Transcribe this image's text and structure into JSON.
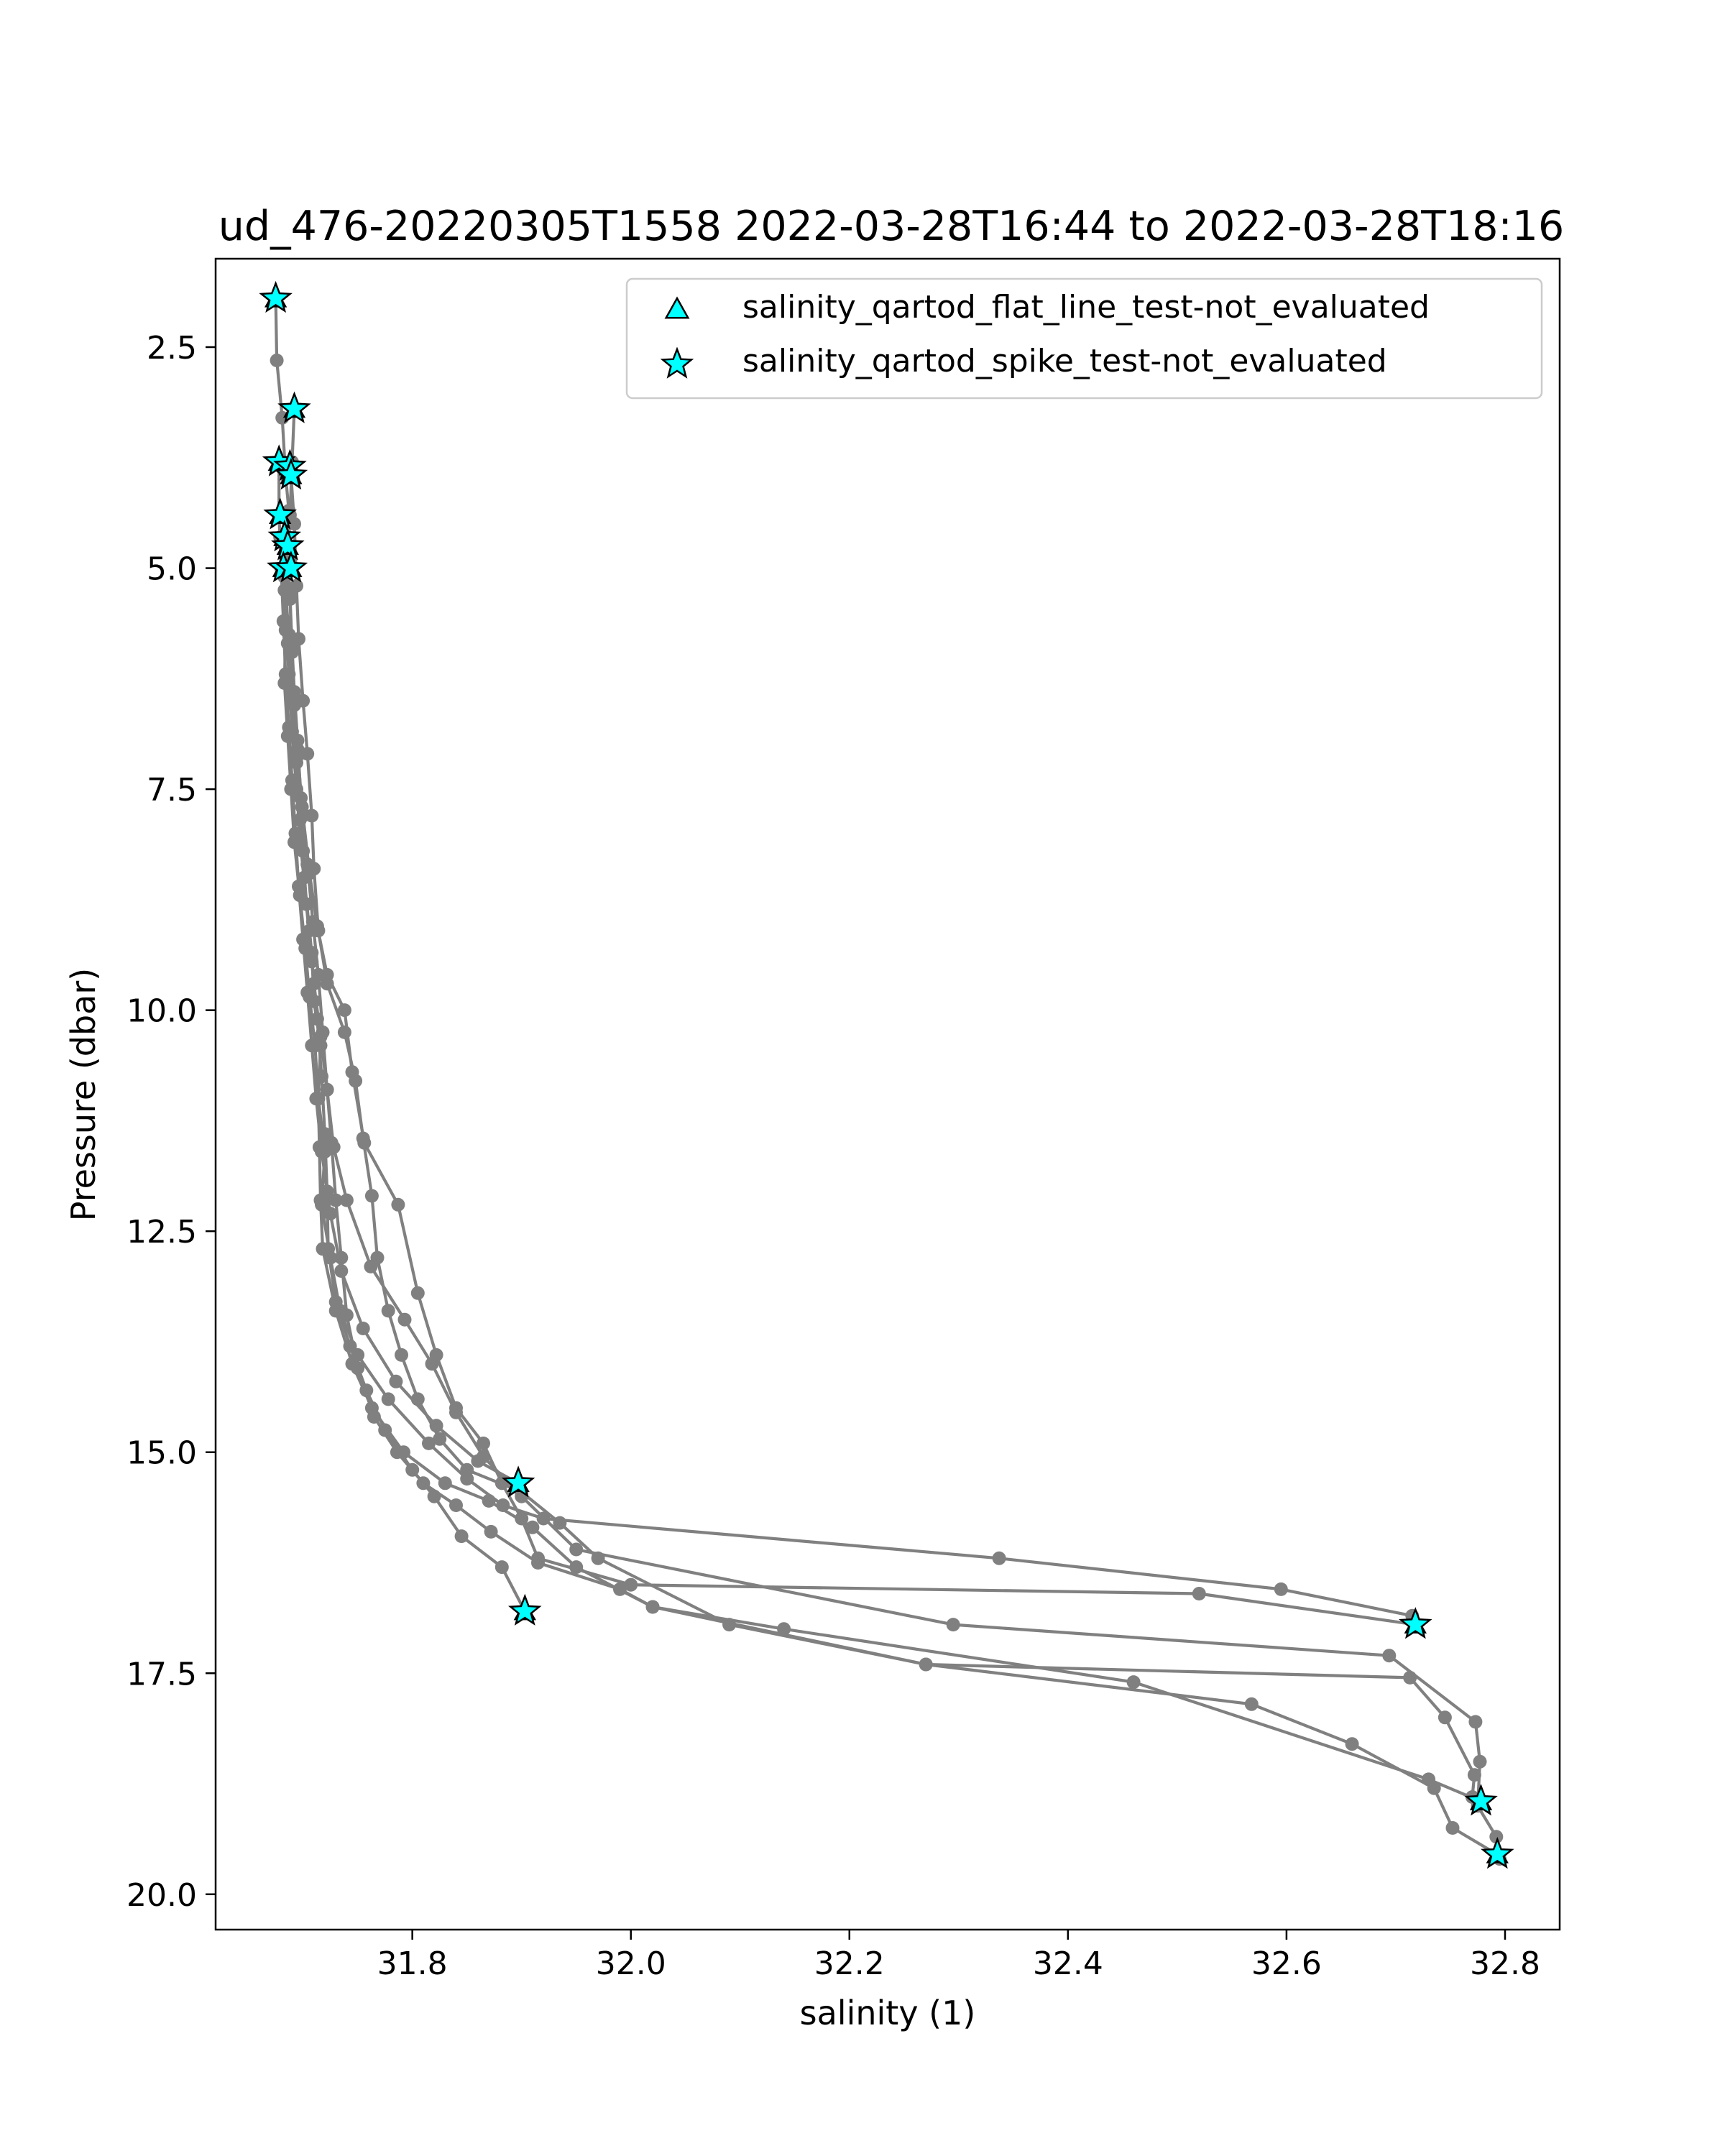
{
  "chart_data": {
    "type": "line",
    "title": "ud_476-20220305T1558 2022-03-28T16:44 to 2022-03-28T18:16",
    "xlabel": "salinity (1)",
    "ylabel": "Pressure (dbar)",
    "xlim": [
      31.62,
      32.85
    ],
    "ylim": [
      20.4,
      1.5
    ],
    "y_inverted": true,
    "grid": false,
    "legend_position": "top-right",
    "xticks": [
      "31.8",
      "32.0",
      "32.2",
      "32.4",
      "32.6",
      "32.8"
    ],
    "yticks": [
      "2.5",
      "5.0",
      "7.5",
      "10.0",
      "12.5",
      "15.0",
      "17.5",
      "20.0"
    ],
    "line_color": "#808080",
    "marker_color": "#00ffff",
    "series": [
      {
        "values": [
          [
            31.675,
            1.95
          ],
          [
            31.676,
            2.65
          ],
          [
            31.681,
            3.3
          ],
          [
            31.684,
            3.95
          ],
          [
            31.687,
            4.35
          ],
          [
            31.685,
            4.85
          ],
          [
            31.688,
            5.3
          ],
          [
            31.69,
            5.9
          ],
          [
            31.692,
            6.4
          ],
          [
            31.695,
            6.95
          ],
          [
            31.698,
            7.6
          ],
          [
            31.7,
            8.2
          ],
          [
            31.703,
            8.8
          ],
          [
            31.708,
            9.35
          ],
          [
            31.71,
            9.9
          ],
          [
            31.716,
            10.4
          ],
          [
            31.714,
            11.0
          ],
          [
            31.72,
            11.6
          ],
          [
            31.717,
            12.2
          ],
          [
            31.725,
            12.8
          ],
          [
            31.734,
            13.4
          ],
          [
            31.75,
            13.9
          ],
          [
            31.778,
            14.4
          ],
          [
            31.815,
            14.9
          ],
          [
            31.85,
            15.3
          ],
          [
            31.883,
            15.6
          ],
          [
            31.92,
            15.75
          ],
          [
            32.337,
            16.2
          ],
          [
            32.595,
            16.55
          ],
          [
            32.715,
            16.85
          ]
        ]
      },
      {
        "values": [
          [
            31.692,
            3.2
          ],
          [
            31.69,
            3.8
          ],
          [
            31.688,
            4.4
          ],
          [
            31.686,
            5.05
          ],
          [
            31.684,
            5.7
          ],
          [
            31.683,
            6.3
          ],
          [
            31.686,
            6.9
          ],
          [
            31.689,
            7.5
          ],
          [
            31.692,
            8.1
          ],
          [
            31.697,
            8.7
          ],
          [
            31.702,
            9.3
          ],
          [
            31.706,
            9.85
          ],
          [
            31.711,
            10.4
          ],
          [
            31.714,
            11.0
          ],
          [
            31.715,
            11.55
          ],
          [
            31.716,
            12.15
          ],
          [
            31.718,
            12.7
          ],
          [
            31.73,
            13.4
          ],
          [
            31.745,
            14.0
          ],
          [
            31.763,
            14.5
          ],
          [
            31.792,
            15.0
          ],
          [
            31.83,
            15.35
          ],
          [
            31.87,
            15.55
          ],
          [
            31.91,
            15.85
          ],
          [
            31.95,
            16.3
          ],
          [
            32.02,
            16.75
          ],
          [
            32.14,
            17.0
          ],
          [
            32.46,
            17.6
          ],
          [
            32.73,
            18.7
          ],
          [
            32.778,
            18.95
          ]
        ]
      },
      {
        "values": [
          [
            31.678,
            3.8
          ],
          [
            31.678,
            4.4
          ],
          [
            31.68,
            5.0
          ],
          [
            31.682,
            5.6
          ],
          [
            31.684,
            6.2
          ],
          [
            31.687,
            6.8
          ],
          [
            31.69,
            7.4
          ],
          [
            31.693,
            8.0
          ],
          [
            31.696,
            8.6
          ],
          [
            31.7,
            9.2
          ],
          [
            31.704,
            9.8
          ],
          [
            31.708,
            10.4
          ],
          [
            31.712,
            11.0
          ],
          [
            31.717,
            11.6
          ],
          [
            31.725,
            12.3
          ],
          [
            31.735,
            12.95
          ],
          [
            31.755,
            13.6
          ],
          [
            31.785,
            14.2
          ],
          [
            31.822,
            14.7
          ],
          [
            31.86,
            15.1
          ],
          [
            31.897,
            15.35
          ]
        ]
      },
      {
        "values": [
          [
            31.689,
            3.95
          ],
          [
            31.692,
            4.5
          ],
          [
            31.694,
            5.2
          ],
          [
            31.696,
            5.8
          ],
          [
            31.7,
            6.5
          ],
          [
            31.704,
            7.1
          ],
          [
            31.708,
            7.8
          ],
          [
            31.71,
            8.4
          ],
          [
            31.714,
            9.1
          ],
          [
            31.722,
            9.7
          ],
          [
            31.738,
            10.25
          ],
          [
            31.748,
            10.8
          ],
          [
            31.755,
            11.45
          ],
          [
            31.763,
            12.1
          ],
          [
            31.768,
            12.8
          ],
          [
            31.778,
            13.4
          ],
          [
            31.79,
            13.9
          ],
          [
            31.805,
            14.4
          ],
          [
            31.825,
            14.85
          ],
          [
            31.85,
            15.2
          ],
          [
            31.9,
            15.45
          ],
          [
            31.935,
            15.8
          ],
          [
            31.97,
            16.2
          ],
          [
            32.09,
            16.95
          ],
          [
            32.27,
            17.4
          ],
          [
            32.568,
            17.85
          ],
          [
            32.66,
            18.3
          ],
          [
            32.735,
            18.8
          ],
          [
            32.752,
            19.25
          ],
          [
            32.793,
            19.55
          ]
        ]
      },
      {
        "values": [
          [
            31.679,
            4.65
          ],
          [
            31.683,
            5.25
          ],
          [
            31.686,
            5.85
          ],
          [
            31.69,
            6.5
          ],
          [
            31.694,
            7.15
          ],
          [
            31.7,
            7.8
          ],
          [
            31.706,
            8.45
          ],
          [
            31.713,
            9.05
          ],
          [
            31.722,
            9.6
          ],
          [
            31.738,
            10.0
          ],
          [
            31.745,
            10.7
          ],
          [
            31.756,
            11.5
          ],
          [
            31.787,
            12.2
          ],
          [
            31.805,
            13.2
          ],
          [
            31.822,
            13.9
          ],
          [
            31.84,
            14.5
          ],
          [
            31.865,
            14.9
          ],
          [
            31.882,
            15.35
          ],
          [
            31.9,
            15.75
          ],
          [
            31.915,
            16.2
          ],
          [
            32.0,
            16.5
          ],
          [
            32.52,
            16.6
          ],
          [
            32.718,
            16.95
          ]
        ]
      },
      {
        "values": [
          [
            31.686,
            4.75
          ],
          [
            31.688,
            5.35
          ],
          [
            31.69,
            5.95
          ],
          [
            31.692,
            6.55
          ],
          [
            31.694,
            7.2
          ],
          [
            31.697,
            7.85
          ],
          [
            31.701,
            8.5
          ],
          [
            31.706,
            9.1
          ],
          [
            31.71,
            9.7
          ],
          [
            31.716,
            10.3
          ],
          [
            31.722,
            10.9
          ],
          [
            31.728,
            11.55
          ],
          [
            31.74,
            12.15
          ],
          [
            31.762,
            12.9
          ],
          [
            31.793,
            13.5
          ],
          [
            31.818,
            14.0
          ],
          [
            31.84,
            14.55
          ],
          [
            31.865,
            15.05
          ],
          [
            31.9,
            15.5
          ],
          [
            31.95,
            16.1
          ],
          [
            32.295,
            16.95
          ],
          [
            32.694,
            17.3
          ],
          [
            32.773,
            18.05
          ],
          [
            32.777,
            18.5
          ],
          [
            32.775,
            19.0
          ]
        ]
      },
      {
        "values": [
          [
            31.682,
            5.0
          ],
          [
            31.684,
            5.6
          ],
          [
            31.687,
            6.2
          ],
          [
            31.69,
            6.85
          ],
          [
            31.694,
            7.5
          ],
          [
            31.698,
            8.15
          ],
          [
            31.703,
            8.8
          ],
          [
            31.708,
            9.45
          ],
          [
            31.713,
            10.1
          ],
          [
            31.717,
            10.75
          ],
          [
            31.72,
            11.4
          ],
          [
            31.722,
            12.05
          ],
          [
            31.723,
            12.7
          ],
          [
            31.73,
            13.3
          ],
          [
            31.743,
            13.8
          ],
          [
            31.758,
            14.3
          ],
          [
            31.775,
            14.75
          ],
          [
            31.8,
            15.2
          ],
          [
            31.82,
            15.5
          ],
          [
            31.845,
            15.95
          ],
          [
            31.882,
            16.3
          ],
          [
            31.903,
            16.8
          ]
        ]
      },
      {
        "values": [
          [
            31.683,
            5.1
          ],
          [
            31.687,
            5.75
          ],
          [
            31.691,
            6.4
          ],
          [
            31.695,
            7.05
          ],
          [
            31.699,
            7.7
          ],
          [
            31.704,
            8.35
          ],
          [
            31.709,
            9.0
          ],
          [
            31.714,
            9.6
          ],
          [
            31.718,
            10.25
          ],
          [
            31.722,
            10.9
          ],
          [
            31.726,
            11.5
          ],
          [
            31.73,
            12.15
          ],
          [
            31.735,
            12.8
          ],
          [
            31.74,
            13.45
          ],
          [
            31.75,
            14.05
          ],
          [
            31.765,
            14.6
          ],
          [
            31.786,
            15.0
          ],
          [
            31.81,
            15.35
          ],
          [
            31.84,
            15.6
          ],
          [
            31.872,
            15.9
          ],
          [
            31.915,
            16.25
          ],
          [
            31.99,
            16.55
          ],
          [
            32.02,
            16.75
          ],
          [
            32.27,
            17.4
          ],
          [
            32.713,
            17.55
          ],
          [
            32.745,
            18.0
          ],
          [
            32.772,
            18.65
          ],
          [
            32.77,
            18.9
          ],
          [
            32.792,
            19.35
          ],
          [
            32.795,
            19.6
          ]
        ]
      }
    ],
    "legend": [
      {
        "marker": "triangle",
        "label": "salinity_qartod_flat_line_test-not_evaluated"
      },
      {
        "marker": "star",
        "label": "salinity_qartod_spike_test-not_evaluated"
      }
    ],
    "flagged_points": [
      [
        31.675,
        1.95
      ],
      [
        31.692,
        3.2
      ],
      [
        31.678,
        3.8
      ],
      [
        31.688,
        3.85
      ],
      [
        31.689,
        3.95
      ],
      [
        31.679,
        4.4
      ],
      [
        31.683,
        4.65
      ],
      [
        31.686,
        4.75
      ],
      [
        31.682,
        5.0
      ],
      [
        31.689,
        5.0
      ],
      [
        31.897,
        15.35
      ],
      [
        31.903,
        16.8
      ],
      [
        32.718,
        16.95
      ],
      [
        32.778,
        18.95
      ],
      [
        32.793,
        19.55
      ]
    ]
  }
}
